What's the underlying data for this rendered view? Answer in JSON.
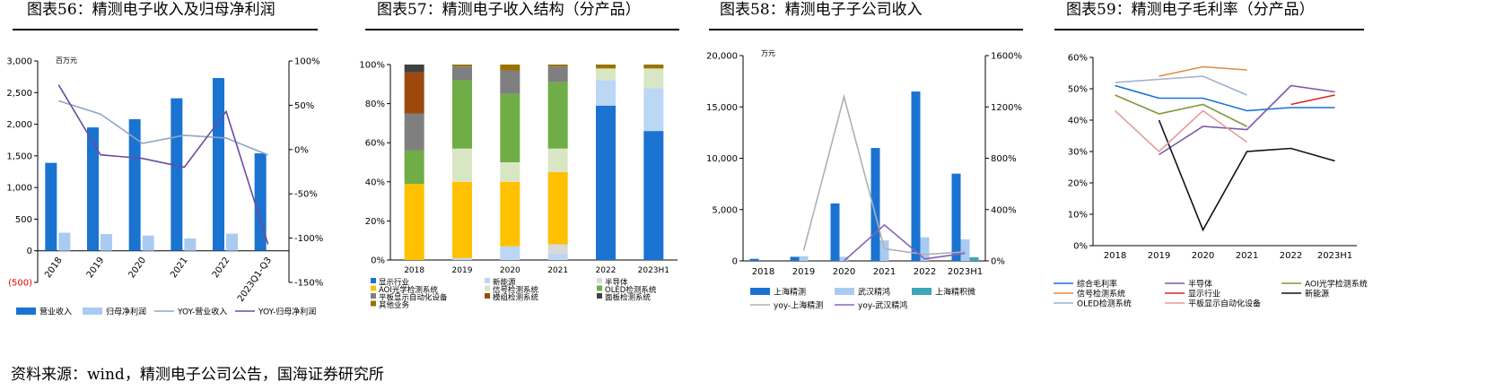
{
  "panels": [
    {
      "title": "图表56：精测电子收入及归母净利润"
    },
    {
      "title": "图表57：精测电子收入结构（分产品）"
    },
    {
      "title": "图表58：精测电子子公司收入"
    },
    {
      "title": "图表59：精测电子毛利率（分产品）"
    }
  ],
  "source": "资料来源：wind，精测电子公司公告，国海证券研究所",
  "colors": {
    "blue": "#1a73d1",
    "light_blue": "#a9cbf2",
    "grey_blue": "#8fa6c4",
    "purple": "#6b4ba0"
  },
  "chart_data": [
    {
      "type": "bar",
      "unit": "百万元",
      "categories": [
        "2018",
        "2019",
        "2020",
        "2021",
        "2022",
        "2023Q1-Q3"
      ],
      "series": [
        {
          "name": "营业收入",
          "kind": "bar",
          "axis": "left",
          "color": "#1a73d1",
          "values": [
            1390,
            1950,
            2080,
            2410,
            2730,
            1540
          ]
        },
        {
          "name": "归母净利润",
          "kind": "bar",
          "axis": "left",
          "color": "#a9cbf2",
          "values": [
            285,
            265,
            240,
            195,
            270,
            null
          ]
        },
        {
          "name": "YOY-营业收入",
          "kind": "line",
          "axis": "right",
          "color": "#8fa6c4",
          "values": [
            55,
            40,
            7,
            16,
            13,
            -6
          ]
        },
        {
          "name": "YOY-归母净利润",
          "kind": "line",
          "axis": "right",
          "color": "#6b4ba0",
          "values": [
            73,
            -6,
            -10,
            -20,
            43,
            -107
          ]
        }
      ],
      "ylim_left": [
        -500,
        3000
      ],
      "yticks_left": [
        "(500)",
        "0",
        "500",
        "1,000",
        "1,500",
        "2,000",
        "2,500",
        "3,000"
      ],
      "ylim_right": [
        -150,
        100
      ],
      "yticks_right": [
        "-150%",
        "-100%",
        "-50%",
        "0%",
        "50%",
        "100%"
      ],
      "legend": [
        "营业收入",
        "归母净利润",
        "YOY-营业收入",
        "YOY-归母净利润"
      ],
      "legend_position": "bottom"
    },
    {
      "type": "bar",
      "stacked": true,
      "categories": [
        "2018",
        "2019",
        "2020",
        "2021",
        "2022",
        "2023H1"
      ],
      "series": [
        {
          "name": "显示行业",
          "color": "#1a73d1",
          "values": [
            0,
            0,
            0,
            0,
            79,
            66
          ]
        },
        {
          "name": "新能源",
          "color": "#bcd6f5",
          "values": [
            0,
            1,
            7,
            3,
            13,
            22
          ]
        },
        {
          "name": "半导体",
          "color": "#d9d9d9",
          "values": [
            0,
            0,
            0,
            5,
            0,
            0
          ]
        },
        {
          "name": "AOI光学检测系统",
          "color": "#ffc000",
          "values": [
            39,
            39,
            33,
            37,
            0,
            0
          ]
        },
        {
          "name": "信号检测系统",
          "color": "#d9e6c4",
          "values": [
            0,
            17,
            10,
            12,
            6,
            10
          ]
        },
        {
          "name": "OLED检测系统",
          "color": "#70ad47",
          "values": [
            17,
            35,
            35,
            34,
            0,
            0
          ]
        },
        {
          "name": "平板显示自动化设备",
          "color": "#7f7f7f",
          "values": [
            19,
            7,
            12,
            8,
            0,
            0
          ]
        },
        {
          "name": "模组检测系统",
          "color": "#9e480e",
          "values": [
            21,
            0,
            0,
            0,
            0,
            0
          ]
        },
        {
          "name": "面板检测系统",
          "color": "#404040",
          "values": [
            4,
            0,
            0,
            0,
            0,
            0
          ]
        },
        {
          "name": "其他业务",
          "color": "#997300",
          "values": [
            0,
            1,
            3,
            1,
            2,
            2
          ]
        }
      ],
      "ylim": [
        0,
        100
      ],
      "yticks": [
        "0%",
        "20%",
        "40%",
        "60%",
        "80%",
        "100%"
      ],
      "legend_position": "bottom"
    },
    {
      "type": "bar",
      "unit": "万元",
      "categories": [
        "2018",
        "2019",
        "2020",
        "2021",
        "2022",
        "2023H1"
      ],
      "series": [
        {
          "name": "上海精测",
          "kind": "bar",
          "axis": "left",
          "color": "#1a73d1",
          "values": [
            200,
            400,
            5600,
            11000,
            16500,
            8500
          ]
        },
        {
          "name": "武汉精鸿",
          "kind": "bar",
          "axis": "left",
          "color": "#a9cbf2",
          "values": [
            0,
            450,
            400,
            2000,
            2300,
            2100
          ]
        },
        {
          "name": "上海精积微",
          "kind": "bar",
          "axis": "left",
          "color": "#3aa8b8",
          "values": [
            0,
            0,
            0,
            0,
            0,
            350
          ]
        },
        {
          "name": "yoy-上海精测",
          "kind": "line",
          "axis": "right",
          "color": "#b0b0b0",
          "values": [
            null,
            80,
            1280,
            95,
            50,
            70
          ]
        },
        {
          "name": "yoy-武汉精鸿",
          "kind": "line",
          "axis": "right",
          "color": "#8a63b8",
          "values": [
            null,
            null,
            0,
            280,
            15,
            60
          ]
        }
      ],
      "ylim_left": [
        0,
        20000
      ],
      "yticks_left": [
        "0",
        "5,000",
        "10,000",
        "15,000",
        "20,000"
      ],
      "ylim_right": [
        0,
        1600
      ],
      "yticks_right": [
        "0%",
        "400%",
        "800%",
        "1200%",
        "1600%"
      ],
      "legend": [
        "上海精测",
        "武汉精鸿",
        "上海精积微",
        "yoy-上海精测",
        "yoy-武汉精鸿"
      ],
      "legend_position": "bottom"
    },
    {
      "type": "line",
      "categories": [
        "2018",
        "2019",
        "2020",
        "2021",
        "2022",
        "2023H1"
      ],
      "series": [
        {
          "name": "综合毛利率",
          "color": "#1a73d1",
          "values": [
            51,
            47,
            47,
            43,
            44,
            44
          ]
        },
        {
          "name": "半导体",
          "color": "#7b5aa6",
          "values": [
            null,
            29,
            38,
            37,
            51,
            49
          ]
        },
        {
          "name": "AOI光学检测系统",
          "color": "#7f9a3a",
          "values": [
            48,
            42,
            45,
            38,
            null,
            null
          ]
        },
        {
          "name": "信号检测系统",
          "color": "#e08a3c",
          "values": [
            null,
            54,
            57,
            56,
            null,
            null
          ]
        },
        {
          "name": "显示行业",
          "color": "#e02020",
          "values": [
            null,
            null,
            null,
            null,
            45,
            48
          ]
        },
        {
          "name": "新能源",
          "color": "#111111",
          "values": [
            null,
            40,
            5,
            30,
            31,
            27
          ]
        },
        {
          "name": "OLED检测系统",
          "color": "#9fb0cf",
          "values": [
            52,
            53,
            54,
            48,
            null,
            null
          ]
        },
        {
          "name": "平板显示自动化设备",
          "color": "#e39c9c",
          "values": [
            43,
            30,
            43,
            33,
            null,
            null
          ]
        }
      ],
      "ylim": [
        0,
        60
      ],
      "yticks": [
        "0%",
        "10%",
        "20%",
        "30%",
        "40%",
        "50%",
        "60%"
      ],
      "legend_position": "bottom"
    }
  ]
}
